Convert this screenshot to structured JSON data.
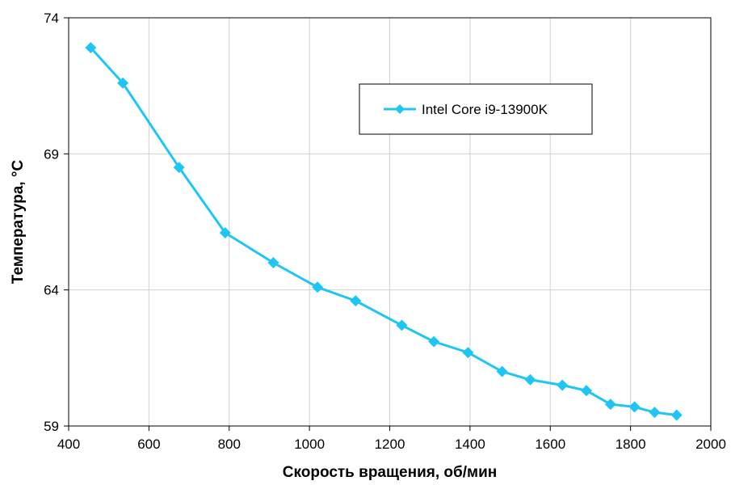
{
  "chart_data": {
    "type": "line",
    "xlabel": "Скорость вращения, об/мин",
    "ylabel": "Температура, °С",
    "xlim": [
      400,
      2000
    ],
    "ylim": [
      59,
      74
    ],
    "x_ticks": [
      "400",
      "600",
      "800",
      "1000",
      "1200",
      "1400",
      "1600",
      "1800",
      "2000"
    ],
    "y_ticks": [
      "59",
      "64",
      "69",
      "74"
    ],
    "grid": true,
    "legend_position": "top-right",
    "series": [
      {
        "name": "Intel Core i9-13900K",
        "color": "#1fc6f5",
        "x": [
          455,
          535,
          675,
          790,
          910,
          1020,
          1115,
          1230,
          1310,
          1395,
          1480,
          1550,
          1630,
          1690,
          1750,
          1810,
          1860,
          1915
        ],
        "y": [
          72.9,
          71.6,
          68.5,
          66.1,
          65.0,
          64.1,
          63.6,
          62.7,
          62.1,
          61.7,
          61.0,
          60.7,
          60.5,
          60.3,
          59.8,
          59.7,
          59.5,
          59.4
        ]
      }
    ]
  }
}
